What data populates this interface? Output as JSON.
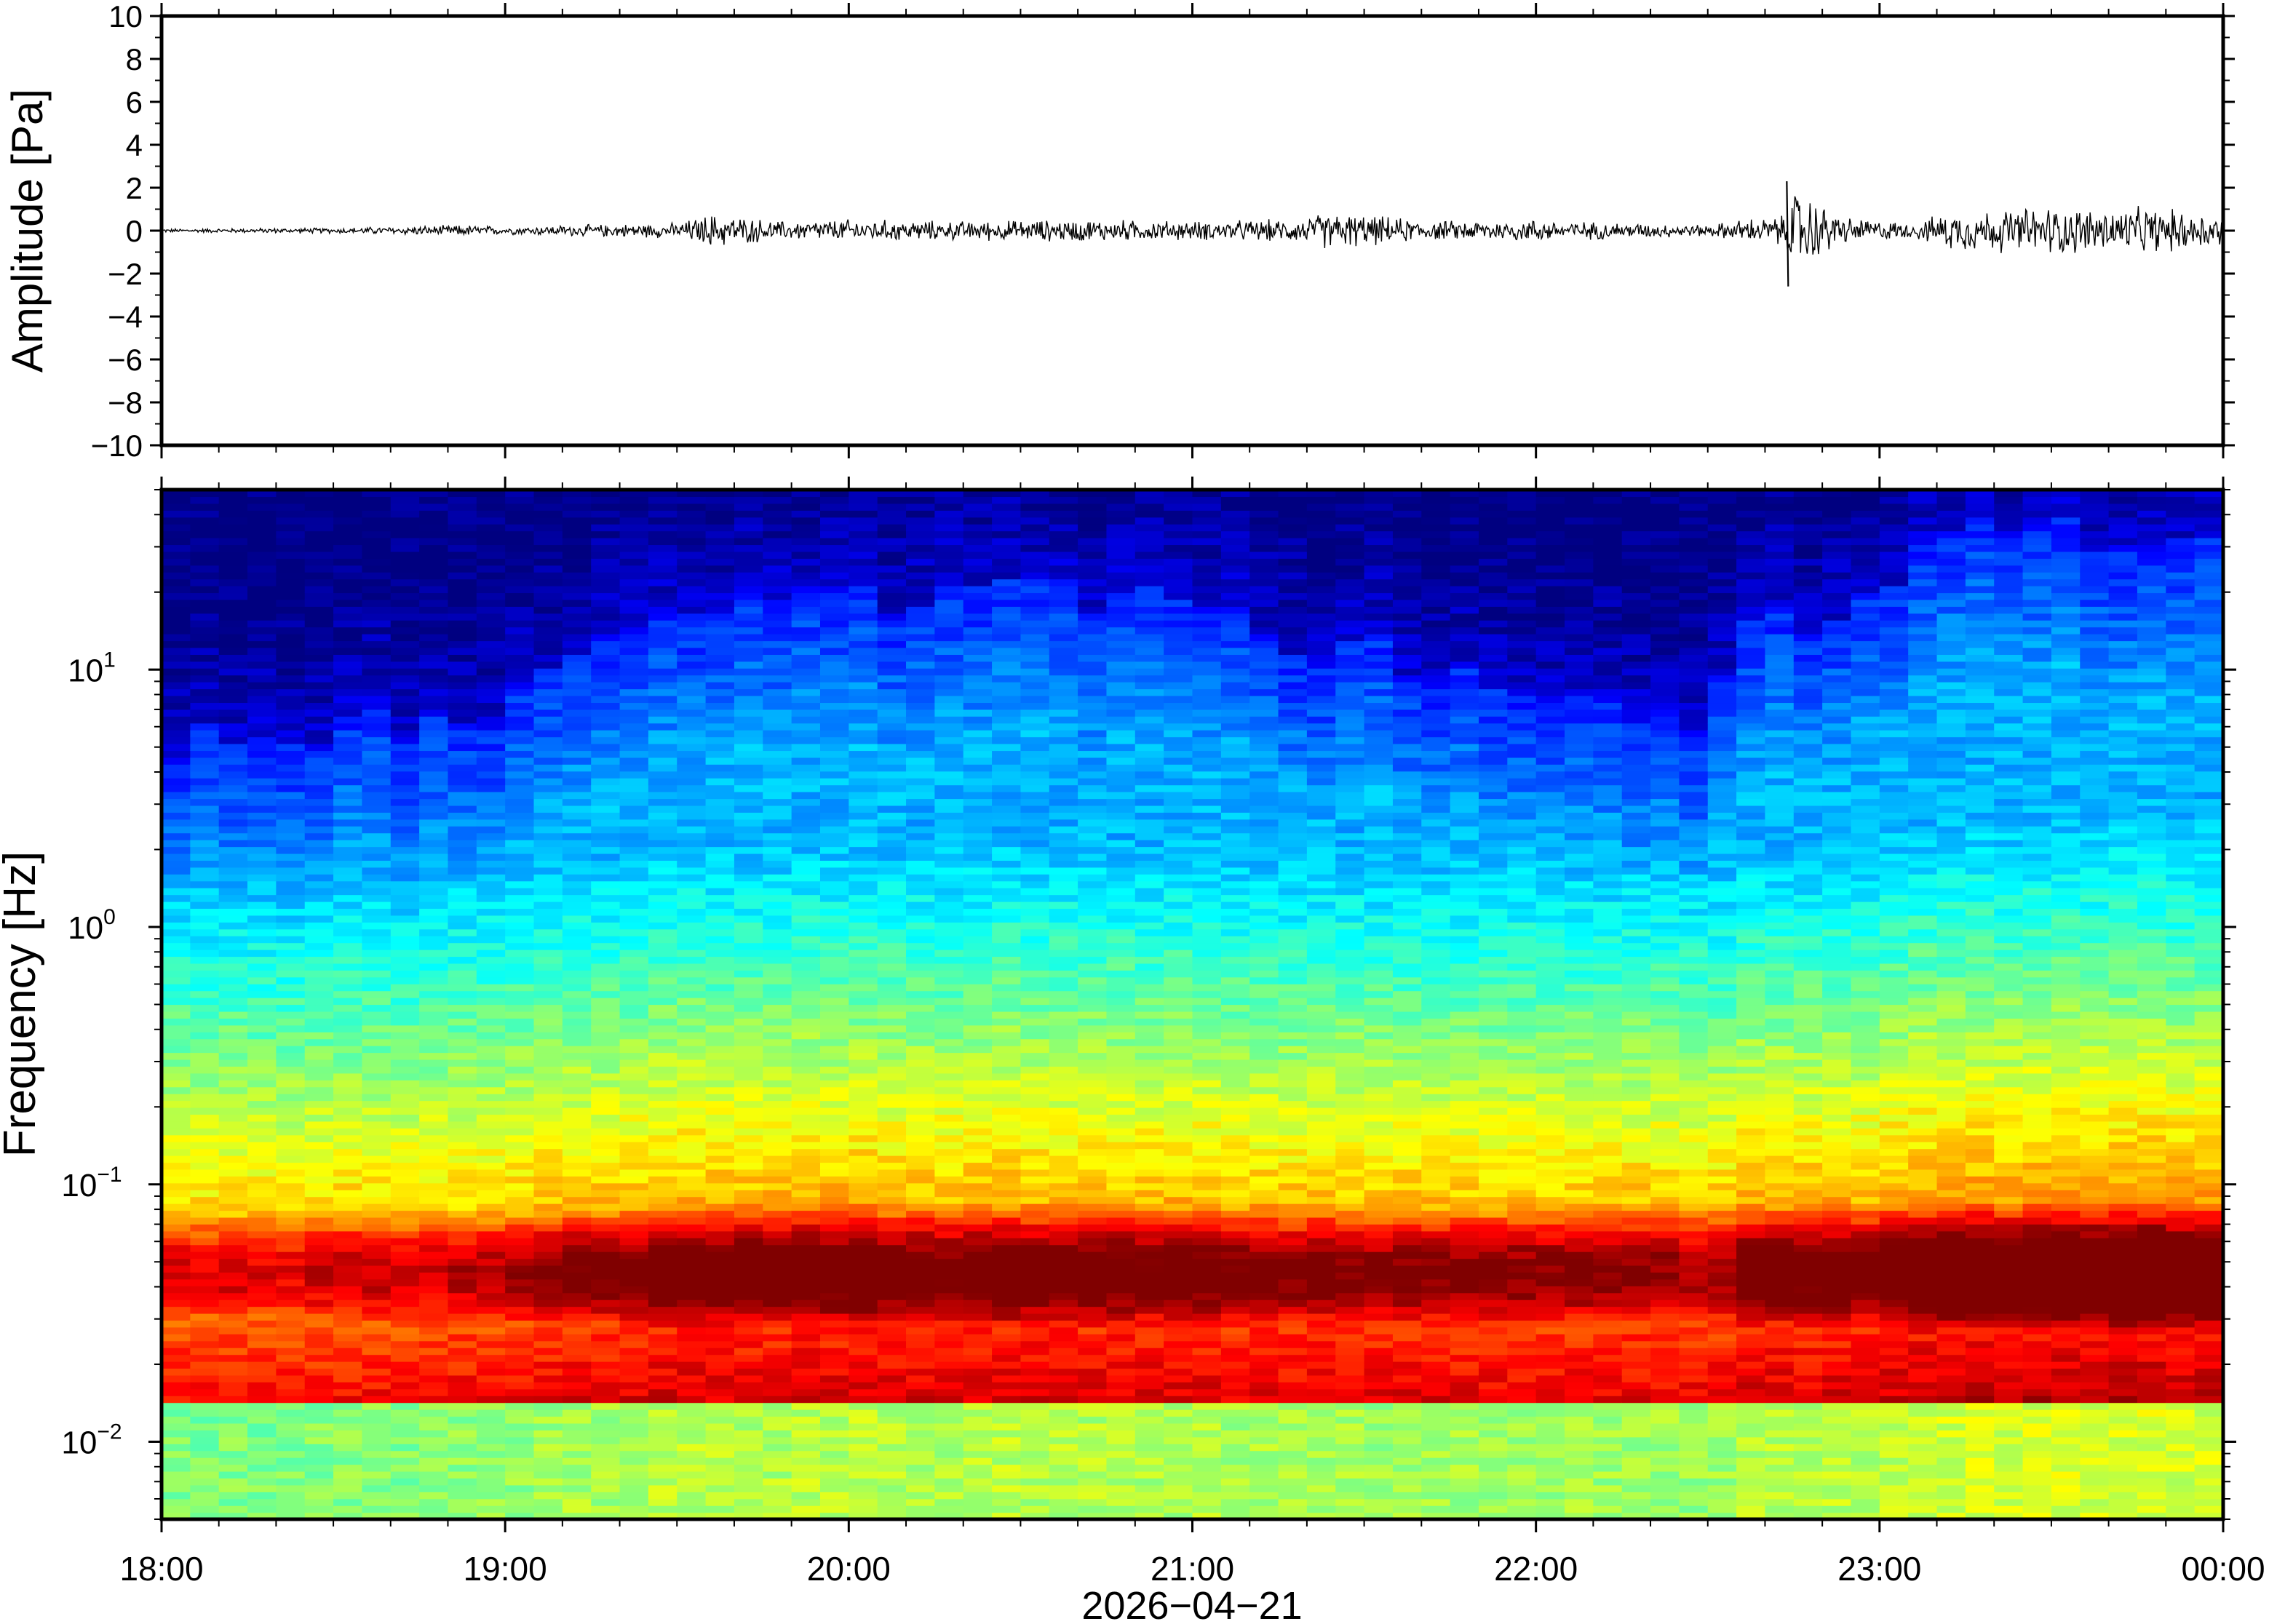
{
  "chart_data": [
    {
      "type": "line",
      "panel": "waveform",
      "title": "",
      "xlabel": "",
      "ylabel": "Amplitude [Pa]",
      "ylim": [
        -10,
        10
      ],
      "yticks": [
        "10",
        "8",
        "6",
        "4",
        "2",
        "0",
        "−2",
        "−4",
        "−6",
        "−8",
        "−10"
      ],
      "ytick_values": [
        10,
        8,
        6,
        4,
        2,
        0,
        -2,
        -4,
        -6,
        -8,
        -10
      ],
      "xlim_hours": [
        18,
        24
      ],
      "series": [
        {
          "envelope_hours": [
            18.0,
            18.5,
            18.9,
            19.0,
            19.2,
            19.5,
            19.6,
            19.8,
            20.0,
            20.3,
            20.7,
            21.0,
            21.3,
            21.4,
            21.7,
            22.0,
            22.1,
            22.5,
            22.6,
            22.72,
            22.75,
            22.9,
            23.1,
            23.2,
            23.5,
            23.6,
            23.8,
            24.0
          ],
          "envelope_pa": [
            0.1,
            0.15,
            0.3,
            0.2,
            0.3,
            0.4,
            0.9,
            0.5,
            0.6,
            0.5,
            0.6,
            0.5,
            0.6,
            1.0,
            0.5,
            0.6,
            0.5,
            0.3,
            0.6,
            0.8,
            2.3,
            0.7,
            0.4,
            1.0,
            1.3,
            1.2,
            1.2,
            0.9
          ],
          "spike": {
            "hour": 22.73,
            "max": 2.3,
            "min": -2.6
          }
        }
      ]
    },
    {
      "type": "heatmap",
      "panel": "spectrogram",
      "title": "",
      "xlabel": "2026−04−21",
      "ylabel": "Frequency [Hz]",
      "yscale": "log",
      "ylim_hz": [
        0.005,
        50
      ],
      "yticks": [
        {
          "base": "10",
          "exp": "1",
          "value": 10
        },
        {
          "base": "10",
          "exp": "0",
          "value": 1
        },
        {
          "base": "10",
          "exp": "−1",
          "value": 0.1
        },
        {
          "base": "10",
          "exp": "−2",
          "value": 0.01
        }
      ],
      "xticks": [
        "18:00",
        "19:00",
        "20:00",
        "21:00",
        "22:00",
        "23:00",
        "00:00"
      ],
      "xtick_hours": [
        18,
        19,
        20,
        21,
        22,
        23,
        24
      ],
      "colormap": "jet",
      "activity_hours": [
        18.0,
        18.5,
        19.0,
        19.2,
        19.5,
        20.0,
        20.5,
        21.0,
        21.3,
        21.5,
        22.0,
        22.5,
        22.6,
        23.0,
        23.2,
        23.5,
        24.0
      ],
      "activity_level": [
        0.15,
        0.2,
        0.25,
        0.5,
        0.6,
        0.62,
        0.6,
        0.58,
        0.45,
        0.5,
        0.45,
        0.35,
        0.6,
        0.6,
        0.85,
        0.88,
        0.85
      ],
      "upper_cutoff_hz": [
        5,
        6,
        7,
        12,
        18,
        20,
        19,
        20,
        10,
        12,
        9,
        6,
        15,
        17,
        32,
        34,
        33
      ]
    }
  ]
}
